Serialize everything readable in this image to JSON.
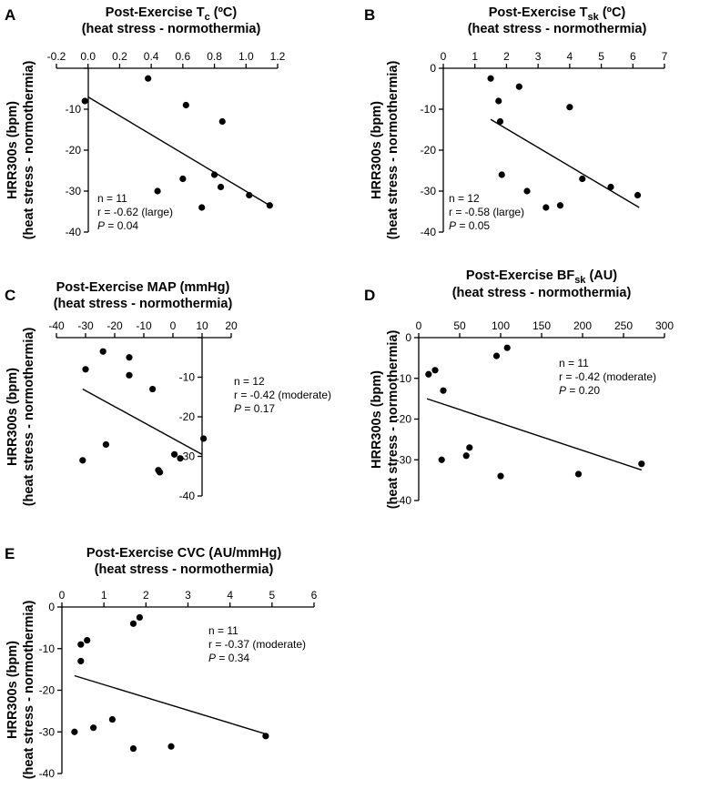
{
  "figure": {
    "ylabel_line1": "HRR300s (bpm)",
    "ylabel_line2": "(heat stress - normothermia)"
  },
  "chart_data": [
    {
      "panel": "A",
      "type": "scatter",
      "title": "Post-Exercise T",
      "title_sub": "c",
      "title_suffix": " (ºC)",
      "subtitle": "(heat stress - normothermia)",
      "xlim": [
        -0.2,
        1.2
      ],
      "xticks": [
        "-0.2",
        "0.0",
        "0.2",
        "0.4",
        "0.6",
        "0.8",
        "1.0",
        "1.2"
      ],
      "ylim": [
        -40,
        0
      ],
      "yticks": [
        "-10",
        "-20",
        "-30",
        "-40"
      ],
      "points": [
        [
          -0.02,
          -8
        ],
        [
          0.38,
          -2.5
        ],
        [
          0.44,
          -30
        ],
        [
          0.6,
          -27
        ],
        [
          0.62,
          -9
        ],
        [
          0.72,
          -34
        ],
        [
          0.8,
          -26
        ],
        [
          0.84,
          -29
        ],
        [
          0.85,
          -13
        ],
        [
          1.02,
          -31
        ],
        [
          1.15,
          -33.5
        ]
      ],
      "fit": [
        [
          0.0,
          -7
        ],
        [
          1.15,
          -33.5
        ]
      ],
      "stats": {
        "n": "n = 11",
        "r": "r = -0.62  (large)",
        "p_label": "P",
        "p_value": " = 0.04"
      }
    },
    {
      "panel": "B",
      "type": "scatter",
      "title": "Post-Exercise T",
      "title_sub": "sk",
      "title_suffix": " (ºC)",
      "subtitle": "(heat stress - normothermia)",
      "xlim": [
        0,
        7
      ],
      "xticks": [
        "0",
        "1",
        "2",
        "3",
        "4",
        "5",
        "6",
        "7"
      ],
      "ylim": [
        -40,
        0
      ],
      "yticks": [
        "0",
        "-10",
        "-20",
        "-30",
        "-40"
      ],
      "points": [
        [
          1.5,
          -2.5
        ],
        [
          1.75,
          -8
        ],
        [
          1.8,
          -13
        ],
        [
          1.85,
          -26
        ],
        [
          2.4,
          -4.5
        ],
        [
          2.65,
          -30
        ],
        [
          3.25,
          -34
        ],
        [
          3.7,
          -33.5
        ],
        [
          4.0,
          -9.5
        ],
        [
          4.4,
          -27
        ],
        [
          5.3,
          -29
        ],
        [
          6.15,
          -31
        ]
      ],
      "fit": [
        [
          1.5,
          -12.5
        ],
        [
          6.2,
          -34
        ]
      ],
      "stats": {
        "n": "n = 12",
        "r": "r = -0.58 (large)",
        "p_label": "P",
        "p_value": " = 0.05"
      }
    },
    {
      "panel": "C",
      "type": "scatter",
      "title": "Post-Exercise MAP (mmHg)",
      "title_sub": "",
      "title_suffix": "",
      "subtitle": "(heat stress - normothermia)",
      "xlim": [
        -40,
        20
      ],
      "xticks": [
        "-40",
        "-30",
        "-20",
        "-10",
        "0",
        "10",
        "20"
      ],
      "ylim": [
        -40,
        0
      ],
      "yticks": [
        "-10",
        "-20",
        "-30",
        "-40"
      ],
      "points": [
        [
          -31,
          -31
        ],
        [
          -30,
          -8
        ],
        [
          -24,
          -3.5
        ],
        [
          -23,
          -27
        ],
        [
          -15,
          -5
        ],
        [
          -15,
          -9.5
        ],
        [
          -7,
          -13
        ],
        [
          -5,
          -33.5
        ],
        [
          -4.5,
          -34
        ],
        [
          0.5,
          -29.5
        ],
        [
          2.5,
          -30.5
        ],
        [
          10.5,
          -25.5
        ]
      ],
      "fit": [
        [
          -31,
          -13
        ],
        [
          10,
          -29.5
        ]
      ],
      "stats": {
        "n": "n = 12",
        "r": "r = -0.42 (moderate)",
        "p_label": "P",
        "p_value": " = 0.17"
      }
    },
    {
      "panel": "D",
      "type": "scatter",
      "title": "Post-Exercise BF",
      "title_sub": "sk",
      "title_suffix": " (AU)",
      "subtitle": "(heat stress - normothermia)",
      "xlim": [
        0,
        300
      ],
      "xticks": [
        "0",
        "50",
        "100",
        "150",
        "200",
        "250",
        "300"
      ],
      "ylim": [
        -40,
        0
      ],
      "yticks": [
        "0",
        "-10",
        "-20",
        "-30",
        "-40"
      ],
      "points": [
        [
          12,
          -9
        ],
        [
          20,
          -8
        ],
        [
          28,
          -30
        ],
        [
          30,
          -13
        ],
        [
          58,
          -29
        ],
        [
          62,
          -27
        ],
        [
          95,
          -4.5
        ],
        [
          100,
          -34
        ],
        [
          108,
          -2.5
        ],
        [
          195,
          -33.5
        ],
        [
          272,
          -31
        ]
      ],
      "fit": [
        [
          10,
          -15
        ],
        [
          272,
          -32.5
        ]
      ],
      "stats": {
        "n": "n = 11",
        "r": "r = -0.42 (moderate)",
        "p_label": "P",
        "p_value": " = 0.20"
      }
    },
    {
      "panel": "E",
      "type": "scatter",
      "title": "Post-Exercise CVC (AU/mmHg)",
      "title_sub": "",
      "title_suffix": "",
      "subtitle": "(heat stress - normothermia)",
      "xlim": [
        0,
        6
      ],
      "xticks": [
        "0",
        "1",
        "2",
        "3",
        "4",
        "5",
        "6"
      ],
      "ylim": [
        -40,
        0
      ],
      "yticks": [
        "0",
        "-10",
        "-20",
        "-30",
        "-40"
      ],
      "points": [
        [
          0.3,
          -30
        ],
        [
          0.45,
          -9
        ],
        [
          0.45,
          -13
        ],
        [
          0.6,
          -8
        ],
        [
          0.75,
          -29
        ],
        [
          1.2,
          -27
        ],
        [
          1.7,
          -4
        ],
        [
          1.7,
          -34
        ],
        [
          1.85,
          -2.5
        ],
        [
          2.6,
          -33.5
        ],
        [
          4.85,
          -31
        ]
      ],
      "fit": [
        [
          0.3,
          -16.5
        ],
        [
          4.85,
          -30.5
        ]
      ],
      "stats": {
        "n": "n = 11",
        "r": "r = -0.37 (moderate)",
        "p_label": "P",
        "p_value": " = 0.34"
      }
    }
  ]
}
